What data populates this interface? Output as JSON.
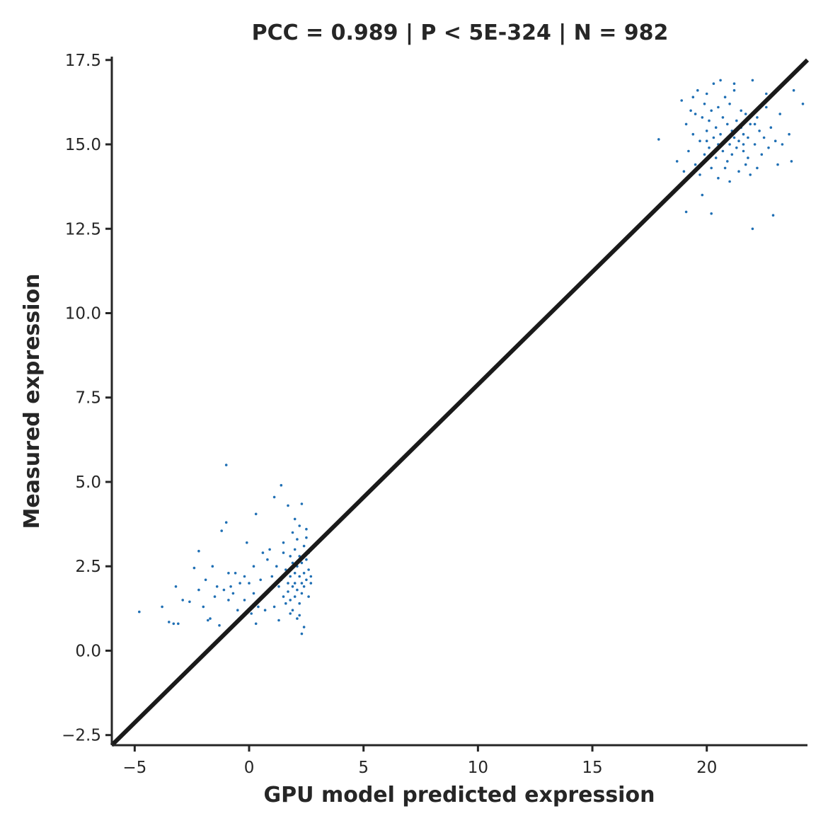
{
  "chart_data": {
    "type": "scatter",
    "title": "PCC =  0.989 | P <  5E-324 | N = 982",
    "xlabel": "GPU model predicted expression",
    "ylabel": "Measured expression",
    "xlim": [
      -6.0,
      24.4
    ],
    "ylim": [
      -2.8,
      17.6
    ],
    "xticks": [
      -5,
      0,
      5,
      10,
      15,
      20
    ],
    "xtick_labels": [
      "−5",
      "0",
      "5",
      "10",
      "15",
      "20"
    ],
    "yticks": [
      -2.5,
      0.0,
      2.5,
      5.0,
      7.5,
      10.0,
      12.5,
      15.0,
      17.5
    ],
    "ytick_labels": [
      "−2.5",
      "0.0",
      "2.5",
      "5.0",
      "7.5",
      "10.0",
      "12.5",
      "15.0",
      "17.5"
    ],
    "point_color": "#1f6fb4",
    "line_color": "#1a1a1a",
    "grid": false,
    "legend": "none",
    "fit_line": {
      "x": [
        -6.0,
        24.4
      ],
      "y": [
        -2.8,
        17.5
      ]
    },
    "series": [
      {
        "points": [
          [
            -4.8,
            1.15
          ],
          [
            -3.8,
            1.3
          ],
          [
            -3.5,
            0.85
          ],
          [
            -3.3,
            0.8
          ],
          [
            -3.1,
            0.8
          ],
          [
            -3.2,
            1.9
          ],
          [
            -2.9,
            1.5
          ],
          [
            -2.6,
            1.45
          ],
          [
            -2.4,
            2.45
          ],
          [
            -2.2,
            2.95
          ],
          [
            -2.2,
            1.8
          ],
          [
            -2.0,
            1.3
          ],
          [
            -1.9,
            2.1
          ],
          [
            -1.8,
            0.9
          ],
          [
            -1.7,
            0.95
          ],
          [
            -1.6,
            2.5
          ],
          [
            -1.5,
            1.6
          ],
          [
            -1.4,
            1.9
          ],
          [
            -1.3,
            0.75
          ],
          [
            -1.2,
            3.55
          ],
          [
            -1.1,
            1.8
          ],
          [
            -1.0,
            3.8
          ],
          [
            -0.9,
            2.3
          ],
          [
            -0.9,
            1.5
          ],
          [
            -1.0,
            5.5
          ],
          [
            -0.8,
            1.9
          ],
          [
            -0.7,
            1.7
          ],
          [
            -0.6,
            2.3
          ],
          [
            -0.5,
            1.2
          ],
          [
            -0.4,
            2.0
          ],
          [
            -0.3,
            1.0
          ],
          [
            -0.2,
            1.5
          ],
          [
            -0.2,
            2.2
          ],
          [
            -0.1,
            3.2
          ],
          [
            0.0,
            2.0
          ],
          [
            0.1,
            1.1
          ],
          [
            0.2,
            1.7
          ],
          [
            0.2,
            2.5
          ],
          [
            0.3,
            4.05
          ],
          [
            0.3,
            0.8
          ],
          [
            0.4,
            1.3
          ],
          [
            0.5,
            2.1
          ],
          [
            0.6,
            1.6
          ],
          [
            0.6,
            2.9
          ],
          [
            0.7,
            1.2
          ],
          [
            0.8,
            2.7
          ],
          [
            0.9,
            3.0
          ],
          [
            0.9,
            1.8
          ],
          [
            1.0,
            2.2
          ],
          [
            1.1,
            4.55
          ],
          [
            1.1,
            1.3
          ],
          [
            1.2,
            2.5
          ],
          [
            1.3,
            1.9
          ],
          [
            1.3,
            0.9
          ],
          [
            1.4,
            2.1
          ],
          [
            1.4,
            4.9
          ],
          [
            1.5,
            1.6
          ],
          [
            1.5,
            3.2
          ],
          [
            1.6,
            2.4
          ],
          [
            1.6,
            1.4
          ],
          [
            1.7,
            2.0
          ],
          [
            1.7,
            4.3
          ],
          [
            1.7,
            1.75
          ],
          [
            1.8,
            2.8
          ],
          [
            1.8,
            2.2
          ],
          [
            1.8,
            1.5
          ],
          [
            1.9,
            3.5
          ],
          [
            1.9,
            2.6
          ],
          [
            1.9,
            1.9
          ],
          [
            1.9,
            1.2
          ],
          [
            2.0,
            2.3
          ],
          [
            2.0,
            2.0
          ],
          [
            2.0,
            3.0
          ],
          [
            2.0,
            1.6
          ],
          [
            2.1,
            2.5
          ],
          [
            2.1,
            1.8
          ],
          [
            2.1,
            3.3
          ],
          [
            2.1,
            0.95
          ],
          [
            2.2,
            2.2
          ],
          [
            2.2,
            2.8
          ],
          [
            2.2,
            1.4
          ],
          [
            2.2,
            3.7
          ],
          [
            2.3,
            2.0
          ],
          [
            2.3,
            2.6
          ],
          [
            2.3,
            4.35
          ],
          [
            2.3,
            1.7
          ],
          [
            2.3,
            0.5
          ],
          [
            2.4,
            2.3
          ],
          [
            2.4,
            3.1
          ],
          [
            2.4,
            1.9
          ],
          [
            2.4,
            0.7
          ],
          [
            2.5,
            2.1
          ],
          [
            2.5,
            2.7
          ],
          [
            2.5,
            3.6
          ],
          [
            2.6,
            2.4
          ],
          [
            2.6,
            1.6
          ],
          [
            2.6,
            2.9
          ],
          [
            2.7,
            2.2
          ],
          [
            2.7,
            2.0
          ],
          [
            2.5,
            3.35
          ],
          [
            1.8,
            1.1
          ],
          [
            1.5,
            2.9
          ],
          [
            2.0,
            3.9
          ],
          [
            2.2,
            1.05
          ],
          [
            17.9,
            15.15
          ],
          [
            18.7,
            14.5
          ],
          [
            18.9,
            16.3
          ],
          [
            19.0,
            14.2
          ],
          [
            19.1,
            15.6
          ],
          [
            19.1,
            13.0
          ],
          [
            19.2,
            14.8
          ],
          [
            19.3,
            16.0
          ],
          [
            19.4,
            15.3
          ],
          [
            19.5,
            14.4
          ],
          [
            19.5,
            15.9
          ],
          [
            19.6,
            16.6
          ],
          [
            19.7,
            14.1
          ],
          [
            19.7,
            15.1
          ],
          [
            19.8,
            15.8
          ],
          [
            19.8,
            13.5
          ],
          [
            19.9,
            16.2
          ],
          [
            19.9,
            14.7
          ],
          [
            20.0,
            15.4
          ],
          [
            20.0,
            16.5
          ],
          [
            20.1,
            14.9
          ],
          [
            20.1,
            15.7
          ],
          [
            20.2,
            16.0
          ],
          [
            20.2,
            14.3
          ],
          [
            20.2,
            12.95
          ],
          [
            20.3,
            15.2
          ],
          [
            20.3,
            16.8
          ],
          [
            20.4,
            15.5
          ],
          [
            20.4,
            14.6
          ],
          [
            20.5,
            16.1
          ],
          [
            20.5,
            15.0
          ],
          [
            20.6,
            15.3
          ],
          [
            20.6,
            16.9
          ],
          [
            20.7,
            14.8
          ],
          [
            20.7,
            15.8
          ],
          [
            20.8,
            15.1
          ],
          [
            20.8,
            16.4
          ],
          [
            20.9,
            14.5
          ],
          [
            20.9,
            15.6
          ],
          [
            21.0,
            15.0
          ],
          [
            21.0,
            16.2
          ],
          [
            21.0,
            13.9
          ],
          [
            21.1,
            15.4
          ],
          [
            21.1,
            14.7
          ],
          [
            21.2,
            15.2
          ],
          [
            21.2,
            16.6
          ],
          [
            21.3,
            14.9
          ],
          [
            21.3,
            15.7
          ],
          [
            21.4,
            15.1
          ],
          [
            21.4,
            14.2
          ],
          [
            21.5,
            15.5
          ],
          [
            21.5,
            16.0
          ],
          [
            21.6,
            14.8
          ],
          [
            21.6,
            15.3
          ],
          [
            21.7,
            14.4
          ],
          [
            21.7,
            15.9
          ],
          [
            21.8,
            15.2
          ],
          [
            21.8,
            14.6
          ],
          [
            21.9,
            15.6
          ],
          [
            22.0,
            12.5
          ],
          [
            22.0,
            16.9
          ],
          [
            22.1,
            15.0
          ],
          [
            22.2,
            14.3
          ],
          [
            22.2,
            15.8
          ],
          [
            22.3,
            15.4
          ],
          [
            22.4,
            14.7
          ],
          [
            22.5,
            15.2
          ],
          [
            22.6,
            16.1
          ],
          [
            22.7,
            14.9
          ],
          [
            22.8,
            15.5
          ],
          [
            22.9,
            12.9
          ],
          [
            23.0,
            15.1
          ],
          [
            23.1,
            14.4
          ],
          [
            23.2,
            15.9
          ],
          [
            23.3,
            15.0
          ],
          [
            23.6,
            15.3
          ],
          [
            23.7,
            14.5
          ],
          [
            23.8,
            16.6
          ],
          [
            24.2,
            16.2
          ],
          [
            21.9,
            14.1
          ],
          [
            20.5,
            14.0
          ],
          [
            19.4,
            16.4
          ],
          [
            22.6,
            16.5
          ],
          [
            21.2,
            16.8
          ],
          [
            20.0,
            15.1
          ],
          [
            21.6,
            15.0
          ],
          [
            20.8,
            14.3
          ],
          [
            22.1,
            15.6
          ]
        ]
      }
    ]
  }
}
